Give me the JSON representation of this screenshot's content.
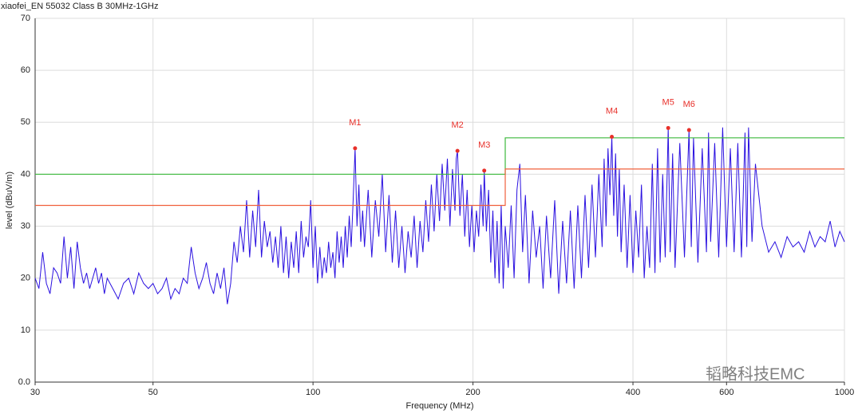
{
  "chart_data": {
    "type": "line",
    "title": "xiaofei_EN 55032 Class B 30MHz-1GHz",
    "x_label": "Frequency (MHz)",
    "y_label": "level (dBuV/m)",
    "watermark": "韬略科技EMC",
    "x_scale": "log",
    "xlim": [
      30,
      1000
    ],
    "xticks": [
      30,
      50,
      100,
      200,
      400,
      600,
      1000
    ],
    "ylim": [
      0,
      70
    ],
    "yticks": [
      {
        "value": 0,
        "label": "0.0"
      },
      10,
      20,
      30,
      40,
      50,
      60,
      70
    ],
    "grid": true,
    "series": [
      {
        "color": "#2a10e0",
        "x": [
          30,
          30.5,
          31,
          31.5,
          32,
          32.5,
          33,
          33.5,
          34,
          34.5,
          35,
          35.5,
          36,
          36.5,
          37,
          37.5,
          38,
          38.5,
          39,
          39.5,
          40,
          40.5,
          41,
          42,
          43,
          44,
          45,
          46,
          47,
          48,
          49,
          50,
          51,
          52,
          53,
          54,
          55,
          56,
          57,
          58,
          59,
          60,
          61,
          62,
          63,
          64,
          65,
          66,
          67,
          68,
          69,
          70,
          71,
          72,
          73,
          74,
          75,
          76,
          77,
          78,
          79,
          80,
          81,
          82,
          83,
          84,
          85,
          86,
          87,
          88,
          89,
          90,
          91,
          92,
          93,
          94,
          95,
          96,
          97,
          98,
          99,
          100,
          101,
          102,
          103,
          104,
          105,
          106,
          107,
          108,
          109,
          110,
          111,
          112,
          113,
          114,
          115,
          116,
          117,
          118,
          119,
          120,
          121,
          122,
          123,
          124,
          125,
          127,
          129,
          131,
          133,
          135,
          137,
          139,
          141,
          143,
          145,
          147,
          149,
          151,
          153,
          155,
          157,
          159,
          161,
          163,
          165,
          167,
          169,
          171,
          173,
          175,
          177,
          179,
          181,
          183,
          185,
          186,
          187,
          189,
          191,
          193,
          195,
          197,
          199,
          201,
          203,
          205,
          207,
          209,
          210,
          212,
          214,
          216,
          218,
          220,
          222,
          224,
          226,
          228,
          230,
          233,
          236,
          239,
          242,
          245,
          248,
          251,
          255,
          259,
          263,
          267,
          271,
          275,
          280,
          285,
          290,
          295,
          300,
          305,
          310,
          315,
          320,
          325,
          330,
          335,
          340,
          345,
          350,
          353,
          356,
          359,
          362,
          365,
          368,
          371,
          374,
          377,
          380,
          385,
          390,
          395,
          400,
          405,
          410,
          415,
          420,
          425,
          430,
          435,
          440,
          445,
          450,
          455,
          460,
          466,
          470,
          475,
          480,
          490,
          500,
          510,
          515,
          520,
          530,
          540,
          550,
          555,
          560,
          570,
          580,
          590,
          600,
          610,
          620,
          630,
          640,
          650,
          655,
          660,
          670,
          680,
          700,
          720,
          740,
          760,
          780,
          800,
          820,
          840,
          860,
          880,
          900,
          920,
          940,
          960,
          980,
          1000
        ],
        "values": [
          20,
          18,
          25,
          19,
          17,
          22,
          21,
          19,
          28,
          20,
          26,
          18,
          27,
          22,
          19,
          21,
          18,
          20,
          22,
          19,
          21,
          17,
          20,
          18,
          16,
          19,
          20,
          17,
          21,
          19,
          18,
          19,
          17,
          18,
          20,
          16,
          18,
          17,
          20,
          19,
          26,
          21,
          18,
          20,
          23,
          19,
          17,
          21,
          18,
          22,
          15,
          19,
          27,
          23,
          30,
          25,
          35,
          24,
          33,
          26,
          37,
          24,
          31,
          26,
          29,
          23,
          28,
          22,
          30,
          21,
          28,
          20,
          27,
          22,
          29,
          21,
          31,
          24,
          28,
          26,
          35,
          22,
          30,
          19,
          26,
          20,
          24,
          21,
          27,
          22,
          25,
          20,
          29,
          23,
          28,
          22,
          30,
          24,
          32,
          26,
          35,
          45,
          30,
          38,
          27,
          33,
          26,
          37,
          24,
          35,
          28,
          40,
          25,
          36,
          23,
          33,
          22,
          30,
          21,
          29,
          24,
          32,
          22,
          31,
          25,
          35,
          27,
          38,
          29,
          40,
          31,
          42,
          33,
          43,
          30,
          41,
          33,
          43,
          44.5,
          32,
          40,
          28,
          37,
          26,
          34,
          25,
          33,
          28,
          38,
          30,
          40.7,
          29,
          37,
          23,
          33,
          20,
          31,
          19,
          34,
          18,
          30,
          22,
          34,
          20,
          37,
          42,
          25,
          36,
          19,
          33,
          24,
          30,
          18,
          32,
          20,
          35,
          17,
          31,
          19,
          33,
          18,
          34,
          20,
          36,
          22,
          38,
          24,
          40,
          26,
          43,
          30,
          45,
          36,
          47.2,
          32,
          44,
          28,
          41,
          25,
          38,
          22,
          36,
          21,
          33,
          24,
          38,
          20,
          30,
          22,
          42,
          21,
          45,
          23,
          40,
          24,
          48.9,
          25,
          44,
          22,
          46,
          24,
          48.5,
          26,
          47,
          23,
          45,
          25,
          48,
          27,
          46,
          24,
          49,
          26,
          45,
          25,
          46,
          24,
          48,
          26,
          49,
          27,
          42,
          30,
          25,
          27,
          24,
          28,
          26,
          27,
          25,
          29,
          26,
          28,
          27,
          31,
          26,
          29,
          27
        ]
      },
      {
        "color": "#3cb83c",
        "x": [
          30,
          230,
          230,
          1000
        ],
        "values": [
          40,
          40,
          47,
          47
        ]
      },
      {
        "color": "#f0603c",
        "x": [
          30,
          230,
          230,
          1000
        ],
        "values": [
          34,
          34,
          41,
          41
        ]
      }
    ],
    "marker_color": "#e8302a",
    "markers": [
      {
        "label": "M1",
        "x": 120,
        "value": 45
      },
      {
        "label": "M2",
        "x": 187,
        "value": 44.5
      },
      {
        "label": "M3",
        "x": 210,
        "value": 40.7
      },
      {
        "label": "M4",
        "x": 365,
        "value": 47.2
      },
      {
        "label": "M5",
        "x": 466,
        "value": 48.9
      },
      {
        "label": "M6",
        "x": 510,
        "value": 48.5
      }
    ]
  }
}
